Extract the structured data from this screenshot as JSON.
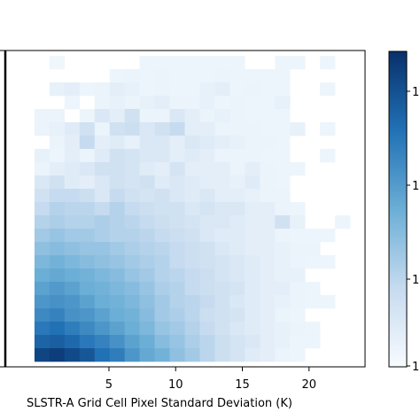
{
  "chart_data": {
    "type": "heatmap",
    "xlabel": "SLSTR-A Grid Cell Pixel Standard Deviation (K)",
    "ylabel": "",
    "title": "",
    "x_ticks": [
      5,
      10,
      15,
      20
    ],
    "xlim": [
      -3.3,
      24.2
    ],
    "colorbar": {
      "scale": "log",
      "colormap": "Blues",
      "tick_labels": [
        "1",
        "1",
        "1",
        "1"
      ]
    },
    "vertical_line_x": -3.2,
    "grid": false,
    "row_intensities": [
      [
        0,
        0,
        0,
        0.04,
        0,
        0,
        0,
        0,
        0,
        0.05,
        0.05,
        0.05,
        0.05,
        0.05,
        0.05,
        0.05,
        0,
        0,
        0.05,
        0.05,
        0,
        0.05,
        0,
        0
      ],
      [
        0,
        0,
        0,
        0,
        0,
        0,
        0,
        0.05,
        0.06,
        0.05,
        0.06,
        0.05,
        0.05,
        0.05,
        0.06,
        0.05,
        0.05,
        0.05,
        0.05,
        0,
        0,
        0,
        0,
        0
      ],
      [
        0,
        0,
        0,
        0.08,
        0.1,
        0.05,
        0.06,
        0.1,
        0.08,
        0.05,
        0.06,
        0.05,
        0.05,
        0.08,
        0.1,
        0.05,
        0.06,
        0.05,
        0.05,
        0,
        0,
        0.05,
        0,
        0
      ],
      [
        0,
        0,
        0,
        0,
        0.05,
        0,
        0.06,
        0.08,
        0.06,
        0.08,
        0.1,
        0.06,
        0.06,
        0.08,
        0.05,
        0.06,
        0.05,
        0.05,
        0.08,
        0,
        0,
        0,
        0,
        0
      ],
      [
        0,
        0,
        0.06,
        0.06,
        0,
        0.05,
        0.15,
        0.1,
        0.2,
        0.06,
        0.06,
        0.15,
        0.1,
        0.06,
        0.08,
        0.06,
        0.05,
        0.05,
        0.05,
        0,
        0,
        0,
        0,
        0
      ],
      [
        0,
        0,
        0.06,
        0.08,
        0.12,
        0.2,
        0.06,
        0.2,
        0.22,
        0.15,
        0.2,
        0.25,
        0.1,
        0.1,
        0.06,
        0.06,
        0.06,
        0.05,
        0.05,
        0.08,
        0,
        0.05,
        0,
        0
      ],
      [
        0,
        0,
        0,
        0.06,
        0.1,
        0.25,
        0.1,
        0.12,
        0.08,
        0.15,
        0.15,
        0.1,
        0.15,
        0.12,
        0.1,
        0.08,
        0.06,
        0.06,
        0.05,
        0,
        0,
        0,
        0,
        0
      ],
      [
        0,
        0,
        0.08,
        0.05,
        0.1,
        0.06,
        0.12,
        0.2,
        0.18,
        0.15,
        0.15,
        0.1,
        0.12,
        0.1,
        0.06,
        0.06,
        0.06,
        0.05,
        0.05,
        0,
        0,
        0.05,
        0,
        0
      ],
      [
        0,
        0,
        0.06,
        0.1,
        0.12,
        0.15,
        0.2,
        0.2,
        0.18,
        0.12,
        0.1,
        0.18,
        0.1,
        0.1,
        0.1,
        0.06,
        0.1,
        0.06,
        0.05,
        0.05,
        0,
        0,
        0,
        0
      ],
      [
        0,
        0,
        0.15,
        0.2,
        0.12,
        0.1,
        0.15,
        0.2,
        0.18,
        0.2,
        0.12,
        0.15,
        0.12,
        0.1,
        0.1,
        0.08,
        0.12,
        0.06,
        0.05,
        0,
        0,
        0,
        0,
        0
      ],
      [
        0,
        0,
        0.2,
        0.25,
        0.25,
        0.22,
        0.15,
        0.25,
        0.2,
        0.18,
        0.2,
        0.15,
        0.12,
        0.15,
        0.1,
        0.1,
        0.08,
        0.06,
        0.06,
        0,
        0,
        0,
        0,
        0
      ],
      [
        0,
        0,
        0.25,
        0.3,
        0.28,
        0.28,
        0.25,
        0.3,
        0.25,
        0.22,
        0.2,
        0.2,
        0.15,
        0.18,
        0.15,
        0.15,
        0.1,
        0.1,
        0.06,
        0.05,
        0,
        0,
        0,
        0
      ],
      [
        0,
        0,
        0.3,
        0.32,
        0.3,
        0.3,
        0.32,
        0.3,
        0.28,
        0.25,
        0.22,
        0.2,
        0.18,
        0.15,
        0.15,
        0.12,
        0.1,
        0.1,
        0.2,
        0.08,
        0,
        0,
        0.05,
        0
      ],
      [
        0,
        0,
        0.35,
        0.38,
        0.35,
        0.35,
        0.32,
        0.3,
        0.3,
        0.28,
        0.25,
        0.22,
        0.2,
        0.15,
        0.12,
        0.12,
        0.1,
        0.1,
        0.06,
        0.05,
        0.05,
        0.05,
        0,
        0
      ],
      [
        0,
        0,
        0.4,
        0.42,
        0.4,
        0.38,
        0.38,
        0.35,
        0.32,
        0.3,
        0.28,
        0.25,
        0.22,
        0.2,
        0.15,
        0.12,
        0.1,
        0.1,
        0.08,
        0.06,
        0.06,
        0,
        0,
        0
      ],
      [
        0,
        0,
        0.45,
        0.48,
        0.45,
        0.42,
        0.4,
        0.38,
        0.35,
        0.32,
        0.3,
        0.25,
        0.22,
        0.2,
        0.18,
        0.15,
        0.12,
        0.1,
        0.08,
        0.06,
        0.05,
        0.05,
        0,
        0
      ],
      [
        0,
        0,
        0.5,
        0.52,
        0.5,
        0.48,
        0.45,
        0.42,
        0.38,
        0.35,
        0.3,
        0.28,
        0.25,
        0.22,
        0.18,
        0.15,
        0.12,
        0.1,
        0.08,
        0.08,
        0,
        0,
        0,
        0
      ],
      [
        0,
        0,
        0.55,
        0.58,
        0.55,
        0.5,
        0.48,
        0.45,
        0.42,
        0.38,
        0.32,
        0.3,
        0.25,
        0.22,
        0.2,
        0.18,
        0.12,
        0.1,
        0.1,
        0.06,
        0.05,
        0,
        0,
        0
      ],
      [
        0,
        0,
        0.6,
        0.62,
        0.6,
        0.55,
        0.5,
        0.48,
        0.45,
        0.4,
        0.35,
        0.3,
        0.28,
        0.25,
        0.2,
        0.15,
        0.12,
        0.1,
        0.08,
        0.06,
        0.05,
        0.05,
        0,
        0
      ],
      [
        0,
        0,
        0.65,
        0.68,
        0.62,
        0.6,
        0.55,
        0.5,
        0.48,
        0.42,
        0.35,
        0.32,
        0.28,
        0.22,
        0.2,
        0.18,
        0.12,
        0.1,
        0.06,
        0.05,
        0,
        0,
        0,
        0
      ],
      [
        0,
        0,
        0.72,
        0.75,
        0.7,
        0.65,
        0.6,
        0.55,
        0.5,
        0.45,
        0.38,
        0.35,
        0.3,
        0.25,
        0.2,
        0.15,
        0.12,
        0.1,
        0.08,
        0.06,
        0.05,
        0,
        0,
        0
      ],
      [
        0,
        0,
        0.8,
        0.82,
        0.78,
        0.72,
        0.68,
        0.62,
        0.55,
        0.5,
        0.42,
        0.38,
        0.32,
        0.28,
        0.22,
        0.18,
        0.15,
        0.1,
        0.08,
        0.05,
        0.05,
        0,
        0,
        0
      ],
      [
        0,
        0,
        0.92,
        0.95,
        0.9,
        0.85,
        0.75,
        0.7,
        0.6,
        0.52,
        0.48,
        0.4,
        0.35,
        0.28,
        0.22,
        0.18,
        0.12,
        0.1,
        0.06,
        0.05,
        0,
        0,
        0,
        0
      ]
    ]
  }
}
